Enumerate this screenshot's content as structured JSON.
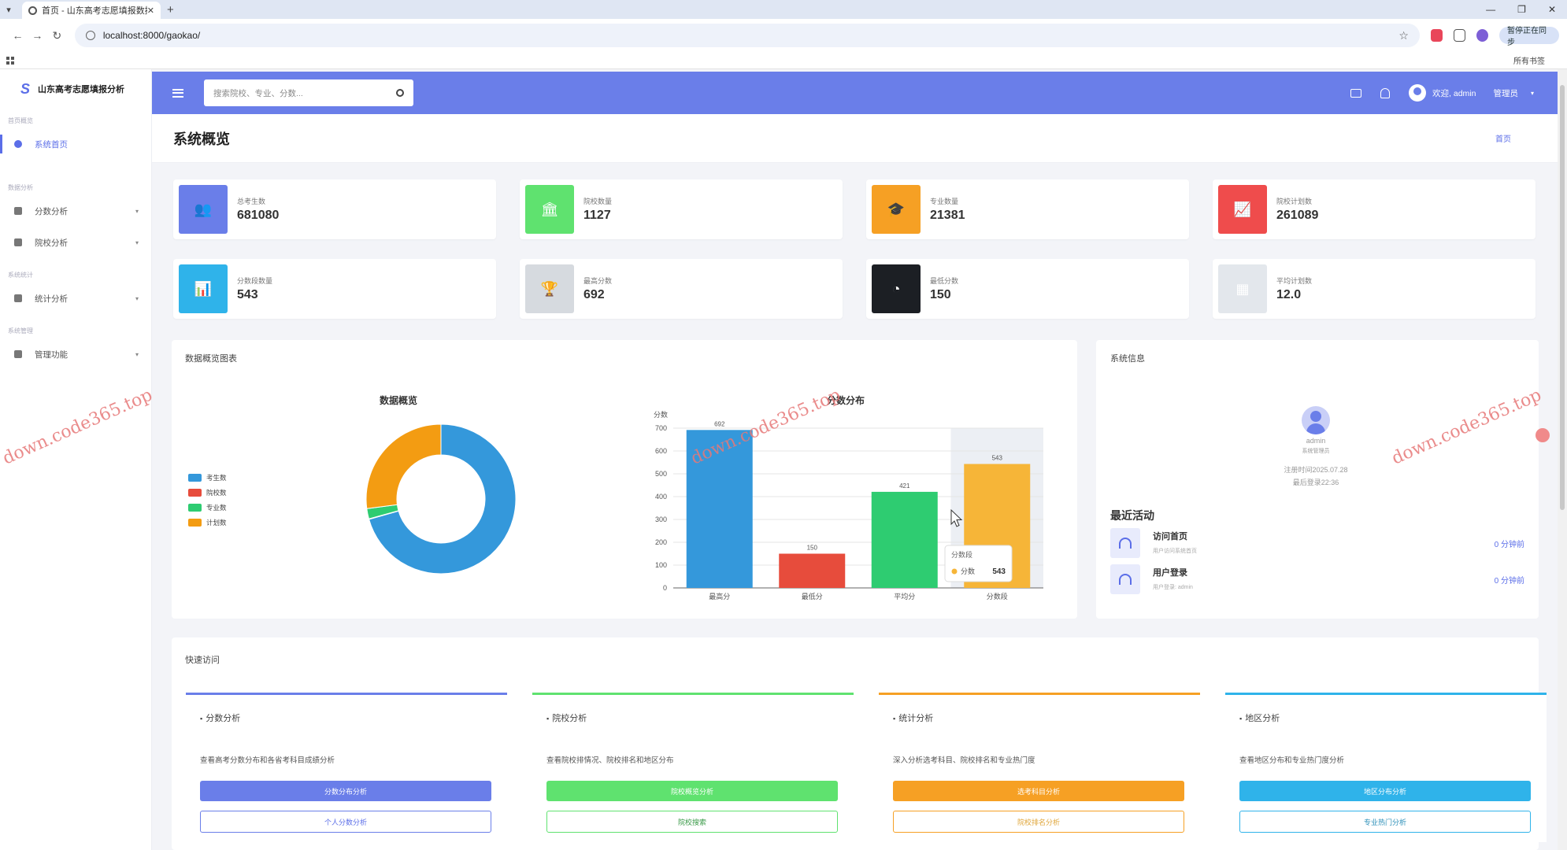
{
  "browser": {
    "tab_title": "首页 - 山东高考志愿填报数据",
    "url": "localhost:8000/gaokao/",
    "bookmarks_label": "所有书签",
    "profile_label": "暂停正在同步"
  },
  "sidebar": {
    "brand": "山东高考志愿填报分析",
    "sections": [
      "首页概览",
      "数据分析",
      "系统统计",
      "系统管理"
    ],
    "items": [
      {
        "label": "系统首页",
        "active": true
      },
      {
        "label": "分数分析"
      },
      {
        "label": "院校分析"
      },
      {
        "label": "统计分析"
      },
      {
        "label": "管理功能"
      }
    ]
  },
  "header": {
    "search_placeholder": "搜索院校、专业、分数...",
    "welcome": "欢迎, admin",
    "role": "管理员"
  },
  "page": {
    "title": "系统概览",
    "breadcrumb": "首页"
  },
  "stats": [
    {
      "label": "总考生数",
      "value": "681080",
      "color": "#6a7ee9",
      "icon": "users-icon"
    },
    {
      "label": "院校数量",
      "value": "1127",
      "color": "#5fe26f",
      "icon": "university-icon"
    },
    {
      "label": "专业数量",
      "value": "21381",
      "color": "#f6a024",
      "icon": "graduation-cap-icon"
    },
    {
      "label": "院校计划数",
      "value": "261089",
      "color": "#ef4c4c",
      "icon": "line-chart-icon"
    },
    {
      "label": "分数段数量",
      "value": "543",
      "color": "#2fb3ea",
      "icon": "bar-chart-icon"
    },
    {
      "label": "最高分数",
      "value": "692",
      "color": "#d6dadf",
      "icon": "trophy-icon"
    },
    {
      "label": "最低分数",
      "value": "150",
      "color": "#1c1f24",
      "icon": "pie-chart-icon"
    },
    {
      "label": "平均计划数",
      "value": "12.0",
      "color": "#e3e7ec",
      "icon": "calculator-icon"
    }
  ],
  "overview": {
    "panel_title": "数据概览图表"
  },
  "chart_data": [
    {
      "type": "pie",
      "title": "数据概览",
      "labels": [
        "考生数",
        "院校数",
        "专业数",
        "计划数"
      ],
      "values": [
        681080,
        1127,
        21381,
        261089
      ],
      "colors": [
        "#3498db",
        "#e74c3c",
        "#2ecc71",
        "#f39c12"
      ],
      "legend": "left"
    },
    {
      "type": "bar",
      "title": "分数分布",
      "ylabel": "分数",
      "categories": [
        "最高分",
        "最低分",
        "平均分",
        "分数段"
      ],
      "values": [
        692,
        150,
        421,
        543
      ],
      "value_labels": [
        "692",
        "150",
        "421",
        "543"
      ],
      "colors": [
        "#3498db",
        "#e74c3c",
        "#2ecc71",
        "#f6b538"
      ],
      "ylim": [
        0,
        700
      ],
      "yticks": [
        0,
        100,
        200,
        300,
        400,
        500,
        600,
        700
      ],
      "tooltip": {
        "title": "分数段",
        "series": "分数",
        "value": "543"
      }
    }
  ],
  "sysinfo": {
    "title": "系统信息",
    "username": "admin",
    "role": "系统管理员",
    "register": "注册时间2025.07.28",
    "last_login": "最后登录22:36",
    "activity_title": "最近活动",
    "activities": [
      {
        "title": "访问首页",
        "desc": "用户访问系统首页",
        "ago": "0 分钟前"
      },
      {
        "title": "用户登录",
        "desc": "用户登录: admin",
        "ago": "0 分钟前"
      }
    ]
  },
  "quick": {
    "title": "快速访问",
    "cards": [
      {
        "title": "分数分析",
        "desc": "查看高考分数分布和各省考科目成绩分析",
        "btn1": "分数分布分析",
        "btn2": "个人分数分析",
        "color": "#6a7ee9",
        "icon": "bar-chart-icon"
      },
      {
        "title": "院校分析",
        "desc": "查看院校排情况、院校排名和地区分布",
        "btn1": "院校概览分析",
        "btn2": "院校搜索",
        "color": "#5fe26f",
        "icon": "list-icon"
      },
      {
        "title": "统计分析",
        "desc": "深入分析选考科目、院校排名和专业热门度",
        "btn1": "选考科目分析",
        "btn2": "院校排名分析",
        "color": "#f6a024",
        "icon": "pie-icon"
      },
      {
        "title": "地区分析",
        "desc": "查看地区分布和专业热门度分析",
        "btn1": "地区分布分析",
        "btn2": "专业热门分析",
        "color": "#2fb3ea",
        "icon": "area-icon"
      }
    ]
  },
  "watermark": "down.code365.top"
}
